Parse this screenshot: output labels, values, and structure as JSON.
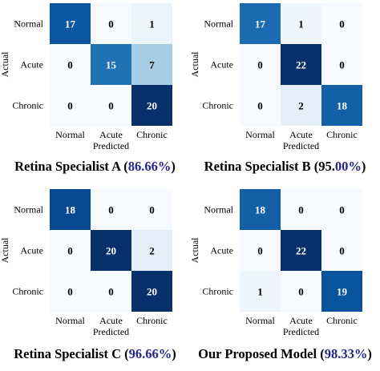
{
  "chart_data": [
    {
      "type": "heatmap",
      "title_prefix": "Retina Specialist A (",
      "title_accuracy": "86.66%",
      "title_suffix": ")",
      "ylabel": "Actual",
      "xlabel": "Predicted",
      "y_categories": [
        "Normal",
        "Acute",
        "Chronic"
      ],
      "x_categories": [
        "Normal",
        "Acute",
        "Chronic"
      ],
      "matrix": [
        [
          17,
          0,
          1
        ],
        [
          0,
          15,
          7
        ],
        [
          0,
          0,
          20
        ]
      ],
      "color_scale": "Blues"
    },
    {
      "type": "heatmap",
      "title_prefix": "Retina Specialist B (95.",
      "title_accuracy": "00%",
      "title_suffix": ")",
      "ylabel": "Actual",
      "xlabel": "Predicted",
      "y_categories": [
        "Normal",
        "Acute",
        "Chronic"
      ],
      "x_categories": [
        "Normal",
        "Acute",
        "Chronic"
      ],
      "matrix": [
        [
          17,
          1,
          0
        ],
        [
          0,
          22,
          0
        ],
        [
          0,
          2,
          18
        ]
      ],
      "color_scale": "Blues"
    },
    {
      "type": "heatmap",
      "title_prefix": "Retina Specialist C (",
      "title_accuracy": "96.66%",
      "title_suffix": ")",
      "ylabel": "Actual",
      "xlabel": "Predicted",
      "y_categories": [
        "Normal",
        "Acute",
        "Chronic"
      ],
      "x_categories": [
        "Normal",
        "Acute",
        "Chronic"
      ],
      "matrix": [
        [
          18,
          0,
          0
        ],
        [
          0,
          20,
          2
        ],
        [
          0,
          0,
          20
        ]
      ],
      "color_scale": "Blues"
    },
    {
      "type": "heatmap",
      "title_prefix": "Our Proposed Model (",
      "title_accuracy": "98.33%",
      "title_suffix": ")",
      "ylabel": "Actual",
      "xlabel": "Predicted",
      "y_categories": [
        "Normal",
        "Acute",
        "Chronic"
      ],
      "x_categories": [
        "Normal",
        "Acute",
        "Chronic"
      ],
      "matrix": [
        [
          18,
          0,
          0
        ],
        [
          0,
          22,
          0
        ],
        [
          1,
          0,
          19
        ]
      ],
      "color_scale": "Blues"
    }
  ],
  "colors": {
    "low": "#f7fbff",
    "high": "#08306b",
    "title_accent": "#24248a",
    "text_dark": "#000000",
    "text_light": "#ffffff"
  }
}
